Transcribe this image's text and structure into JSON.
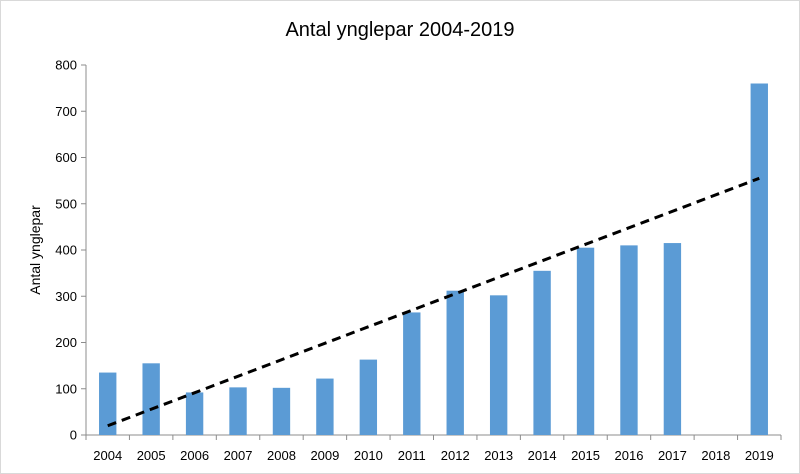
{
  "chart_data": {
    "type": "bar",
    "title": "Antal ynglepar 2004-2019",
    "xlabel": "",
    "ylabel": "Antal ynglepar",
    "categories": [
      "2004",
      "2005",
      "2006",
      "2007",
      "2008",
      "2009",
      "2010",
      "2011",
      "2012",
      "2013",
      "2014",
      "2015",
      "2016",
      "2017",
      "2018",
      "2019"
    ],
    "values": [
      135,
      155,
      92,
      103,
      102,
      122,
      163,
      265,
      312,
      302,
      355,
      405,
      410,
      415,
      null,
      760
    ],
    "ylim": [
      0,
      800
    ],
    "yticks": [
      0,
      100,
      200,
      300,
      400,
      500,
      600,
      700,
      800
    ],
    "grid": false,
    "trendline": {
      "style": "dashed",
      "start": [
        2004,
        20
      ],
      "end": [
        2019,
        555
      ]
    },
    "colors": {
      "bar": "#5b9bd5",
      "trend": "#000000",
      "axis": "#8c8c8c"
    }
  }
}
